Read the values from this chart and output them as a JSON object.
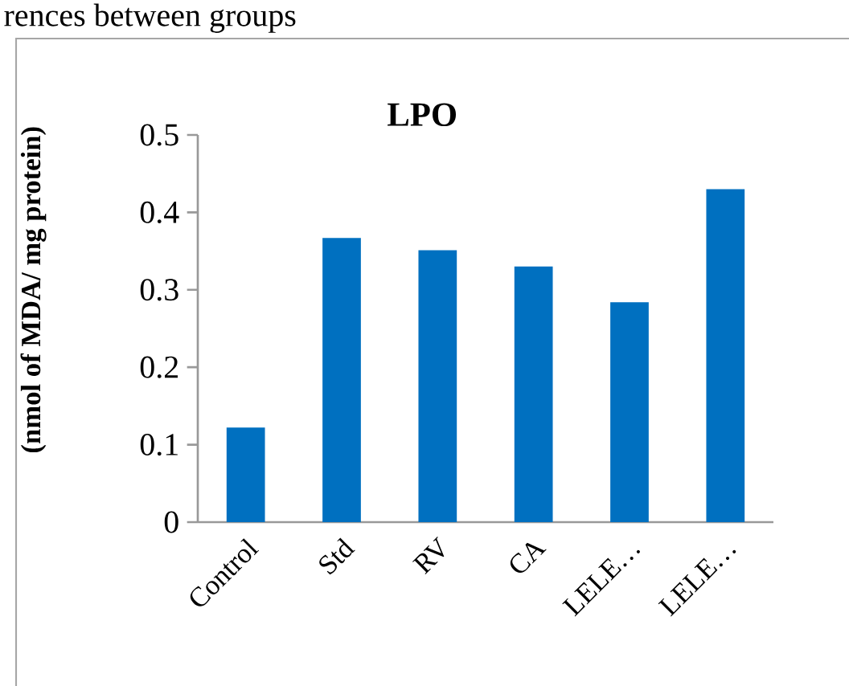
{
  "chart_data": {
    "type": "bar",
    "title": "LPO",
    "ylabel": "(nmol of MDA/ mg protein)",
    "categories": [
      "Control",
      "Std",
      "RV",
      "CA",
      "LELE…",
      "LELE…"
    ],
    "values": [
      0.122,
      0.367,
      0.351,
      0.33,
      0.284,
      0.43
    ],
    "color": "#0070c0",
    "ylim": [
      0,
      0.5
    ],
    "yticks": [
      0,
      0.1,
      0.2,
      0.3,
      0.4,
      0.5
    ],
    "annotations": [
      "rences between groups"
    ]
  }
}
